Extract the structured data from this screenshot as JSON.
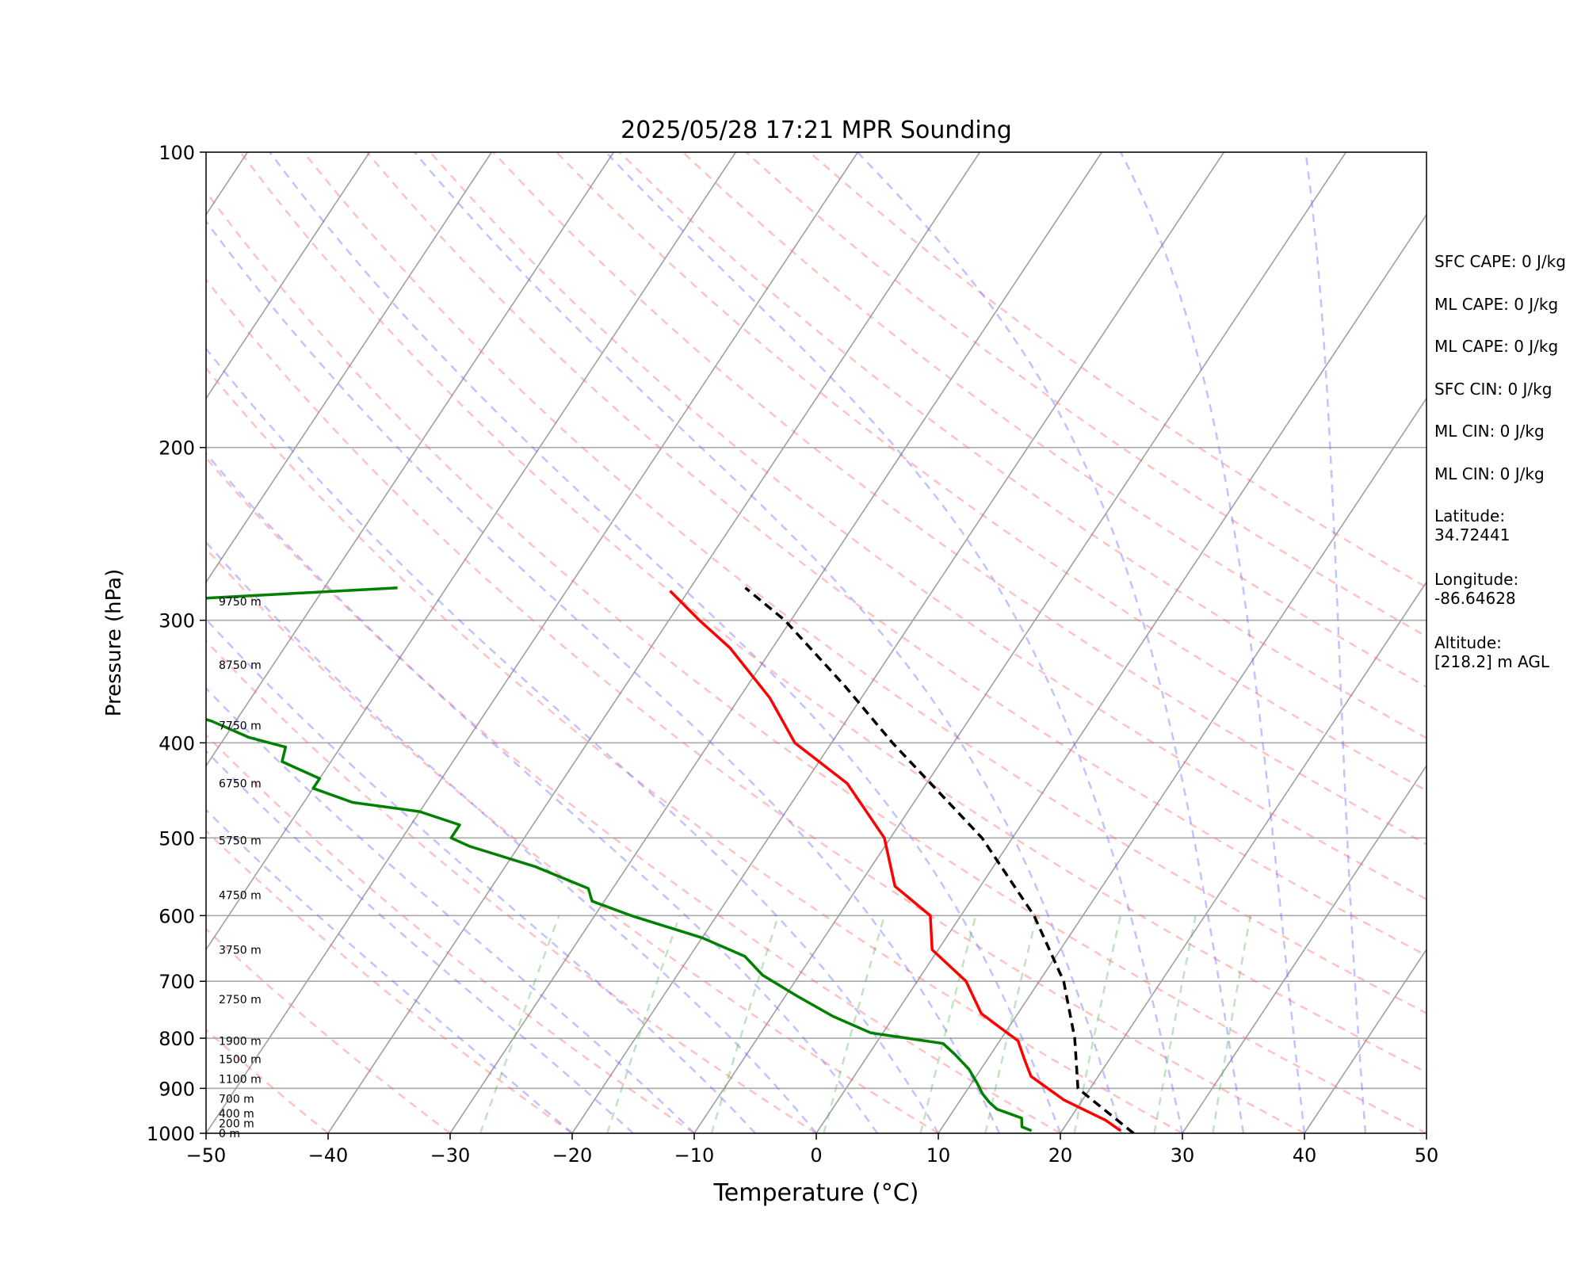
{
  "chart_data": {
    "type": "line",
    "title": "2025/05/28 17:21 MPR Sounding",
    "xlabel": "Temperature (°C)",
    "ylabel": "Pressure (hPa)",
    "xlim": [
      -50,
      50
    ],
    "ylim": [
      1000,
      100
    ],
    "y_scale": "log",
    "skew": "skew-T",
    "grid": true,
    "x_ticks": [
      "−50",
      "−40",
      "−30",
      "−20",
      "−10",
      "0",
      "10",
      "20",
      "30",
      "40",
      "50"
    ],
    "x_tick_values": [
      -50,
      -40,
      -30,
      -20,
      -10,
      0,
      10,
      20,
      30,
      40,
      50
    ],
    "y_ticks": [
      "100",
      "200",
      "300",
      "400",
      "500",
      "600",
      "700",
      "800",
      "900",
      "1000"
    ],
    "y_tick_values": [
      100,
      200,
      300,
      400,
      500,
      600,
      700,
      800,
      900,
      1000
    ],
    "height_labels": [
      {
        "text": "0 m",
        "p": 1000
      },
      {
        "text": "200 m",
        "p": 977
      },
      {
        "text": "400 m",
        "p": 955
      },
      {
        "text": "700 m",
        "p": 922
      },
      {
        "text": "1100 m",
        "p": 880
      },
      {
        "text": "1500 m",
        "p": 840
      },
      {
        "text": "1900 m",
        "p": 805
      },
      {
        "text": "2750 m",
        "p": 730
      },
      {
        "text": "3750 m",
        "p": 650
      },
      {
        "text": "4750 m",
        "p": 572
      },
      {
        "text": "5750 m",
        "p": 503
      },
      {
        "text": "6750 m",
        "p": 440
      },
      {
        "text": "7750 m",
        "p": 384
      },
      {
        "text": "8750 m",
        "p": 333
      },
      {
        "text": "9750 m",
        "p": 287
      }
    ],
    "series": [
      {
        "color": "#ff0000",
        "points": [
          [
            24.8,
            994
          ],
          [
            23.0,
            970
          ],
          [
            18.5,
            925
          ],
          [
            14.5,
            875
          ],
          [
            13.0,
            840
          ],
          [
            11.5,
            805
          ],
          [
            7.0,
            755
          ],
          [
            4.0,
            700
          ],
          [
            -0.5,
            650
          ],
          [
            -2.5,
            600
          ],
          [
            -7.0,
            560
          ],
          [
            -10.5,
            500
          ],
          [
            -16.5,
            440
          ],
          [
            -23.0,
            400
          ],
          [
            -27.5,
            360
          ],
          [
            -33.5,
            320
          ],
          [
            -37.5,
            300
          ],
          [
            -41.5,
            280
          ]
        ]
      },
      {
        "color": "#008000",
        "points": [
          [
            17.5,
            994
          ],
          [
            16.5,
            985
          ],
          [
            16.0,
            965
          ],
          [
            13.5,
            945
          ],
          [
            12.5,
            930
          ],
          [
            11.5,
            912
          ],
          [
            10.5,
            890
          ],
          [
            9.0,
            860
          ],
          [
            7.0,
            830
          ],
          [
            5.5,
            810
          ],
          [
            -1.0,
            790
          ],
          [
            -5.0,
            760
          ],
          [
            -9.0,
            725
          ],
          [
            -13.0,
            690
          ],
          [
            -15.5,
            660
          ],
          [
            -20.0,
            632
          ],
          [
            -27.0,
            600
          ],
          [
            -31.0,
            580
          ],
          [
            -32.0,
            563
          ],
          [
            -37.5,
            535
          ],
          [
            -44.0,
            510
          ],
          [
            -46.0,
            500
          ],
          [
            -46.0,
            485
          ],
          [
            -50.0,
            470
          ],
          [
            -56.0,
            460
          ],
          [
            -60.0,
            445
          ],
          [
            -60.0,
            435
          ],
          [
            -64.0,
            418
          ],
          [
            -64.5,
            404
          ],
          [
            -68.0,
            395
          ],
          [
            -72.0,
            380
          ],
          [
            -77.0,
            367
          ],
          [
            -81.0,
            351
          ],
          [
            -82.0,
            338
          ],
          [
            -85.0,
            328
          ],
          [
            -87.0,
            313
          ],
          [
            -88.0,
            300
          ],
          [
            -84.0,
            287
          ],
          [
            -64.0,
            278
          ]
        ]
      },
      {
        "color": "#000000",
        "dashed": true,
        "points": [
          [
            26.0,
            1000
          ],
          [
            19.0,
            900
          ],
          [
            16.0,
            800
          ],
          [
            12.0,
            700
          ],
          [
            6.0,
            600
          ],
          [
            -2.5,
            500
          ],
          [
            -15.0,
            400
          ],
          [
            -22.0,
            350
          ],
          [
            -30.5,
            300
          ],
          [
            -35.5,
            278
          ]
        ]
      }
    ],
    "dry_adiabats_thetaC": [
      -40,
      -30,
      -20,
      -10,
      0,
      10,
      20,
      30,
      40,
      50,
      60,
      70,
      80,
      90,
      100,
      110,
      120,
      130,
      140,
      150
    ],
    "moist_adiabats_startC": [
      -20,
      -15,
      -10,
      -5,
      0,
      5,
      10,
      15,
      20,
      25,
      30,
      35,
      40,
      45
    ],
    "mixing_ratio_lines_gkg": [
      0.4,
      1,
      2,
      4,
      7,
      10,
      16,
      24,
      32
    ]
  },
  "stats": {
    "sfc_cape": "SFC CAPE: 0 J/kg",
    "ml_cape_1": "ML CAPE: 0 J/kg",
    "ml_cape_2": "ML CAPE: 0 J/kg",
    "sfc_cin": "SFC CIN: 0 J/kg",
    "ml_cin_1": "ML CIN: 0 J/kg",
    "ml_cin_2": "ML CIN: 0 J/kg",
    "latitude_label": "Latitude:",
    "latitude_value": "34.72441",
    "longitude_label": "Longitude:",
    "longitude_value": "-86.64628",
    "altitude_label": "Altitude:",
    "altitude_value": "[218.2] m AGL"
  }
}
